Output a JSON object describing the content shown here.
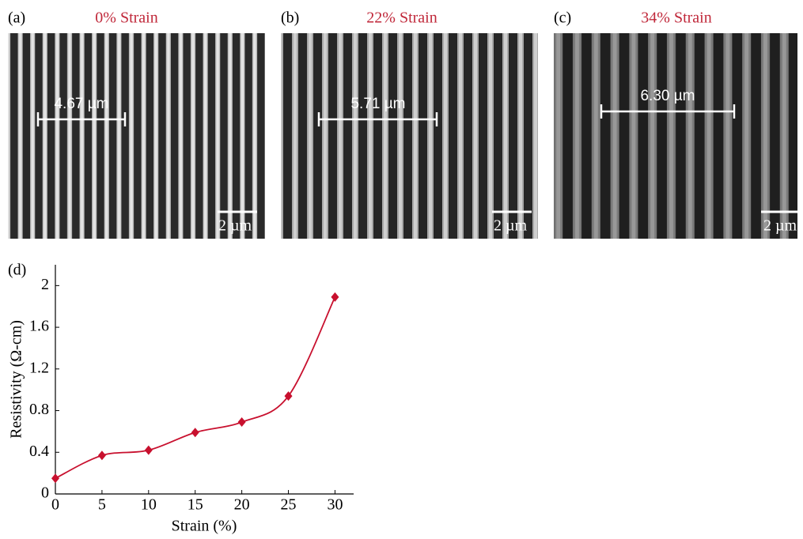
{
  "panels": [
    {
      "label": "(a)",
      "title": "0% Strain",
      "measure": "4.67 µm",
      "scale": "2 µm"
    },
    {
      "label": "(b)",
      "title": "22% Strain",
      "measure": "5.71 µm",
      "scale": "2 µm"
    },
    {
      "label": "(c)",
      "title": "34% Strain",
      "measure": "6.30 µm",
      "scale": "2 µm"
    }
  ],
  "chart_data": {
    "type": "line",
    "panel_label": "(d)",
    "x_label": "Strain (%)",
    "y_label": "Resistivity (Ω-cm)",
    "x": [
      0,
      5,
      10,
      15,
      20,
      25,
      30
    ],
    "series": [
      {
        "color": "#c8102e",
        "values": [
          0.15,
          0.37,
          0.42,
          0.59,
          0.69,
          0.94,
          1.89
        ]
      }
    ],
    "xlim": [
      0,
      32
    ],
    "xticks": [
      0,
      5,
      10,
      15,
      20,
      25,
      30
    ],
    "ylim": [
      0,
      2.2
    ],
    "yticks": [
      0,
      0.4,
      0.8,
      1.2,
      1.6,
      2
    ]
  }
}
